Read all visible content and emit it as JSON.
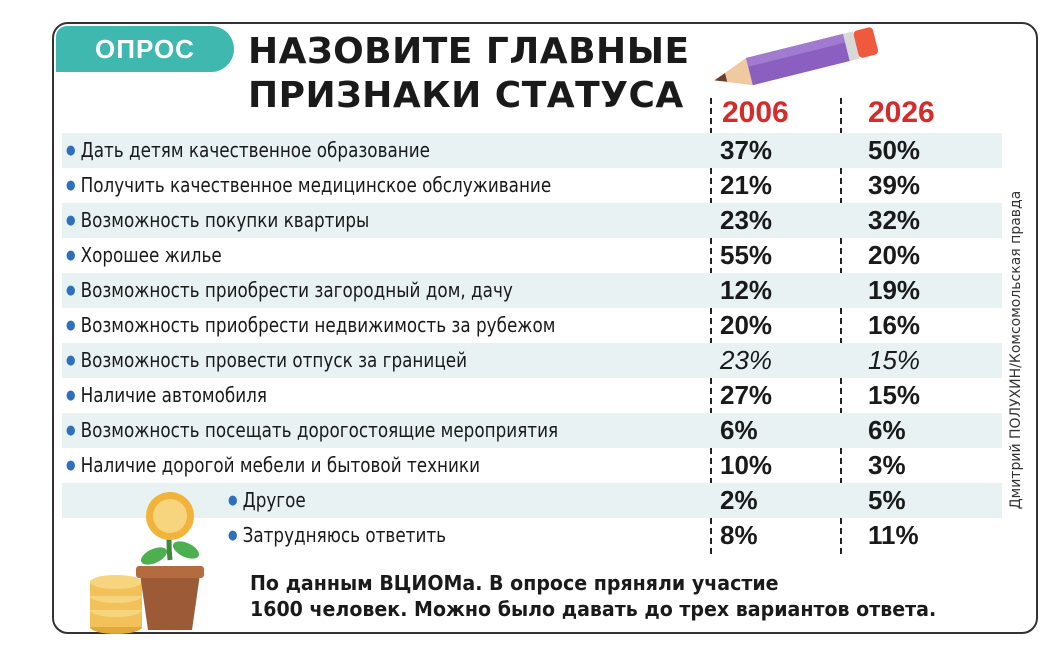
{
  "badge": "ОПРОС",
  "title_lines": [
    "НАЗОВИТЕ ГЛАВНЫЕ",
    "ПРИЗНАКИ СТАТУСА"
  ],
  "credit": "Дмитрий ПОЛУХИН/Комсомольская правда",
  "footnote_lines": [
    "По данным ВЦИОМа. В опросе пряняли участие",
    "1600 человек. Можно было давать до трех вариантов ответа."
  ],
  "colors": {
    "accent": "#3fb8b0",
    "year": "#d62b2b",
    "bullet": "#2f6fc0",
    "row_shade": "#e8f2f2"
  },
  "chart_data": {
    "type": "table",
    "columns": [
      "2006",
      "2026"
    ],
    "rows": [
      {
        "label": "Дать детям качественное образование",
        "values": [
          "37%",
          "50%"
        ],
        "italic": false
      },
      {
        "label": "Получить качественное медицинское обслуживание",
        "values": [
          "21%",
          "39%"
        ],
        "italic": false
      },
      {
        "label": "Возможность покупки квартиры",
        "values": [
          "23%",
          "32%"
        ],
        "italic": false
      },
      {
        "label": "Хорошее жилье",
        "values": [
          "55%",
          "20%"
        ],
        "italic": false
      },
      {
        "label": "Возможность приобрести загородный дом, дачу",
        "values": [
          "12%",
          "19%"
        ],
        "italic": false
      },
      {
        "label": "Возможность приобрести недвижимость за рубежом",
        "values": [
          "20%",
          "16%"
        ],
        "italic": false
      },
      {
        "label": "Возможность провести отпуск за границей",
        "values": [
          "23%",
          "15%"
        ],
        "italic": true
      },
      {
        "label": "Наличие автомобиля",
        "values": [
          "27%",
          "15%"
        ],
        "italic": false
      },
      {
        "label": "Возможность посещать дорогостоящие мероприятия",
        "values": [
          "6%",
          "6%"
        ],
        "italic": false
      },
      {
        "label": "Наличие дорогой мебели и бытовой техники",
        "values": [
          "10%",
          "3%"
        ],
        "italic": false
      },
      {
        "label": "Другое",
        "values": [
          "2%",
          "5%"
        ],
        "italic": false
      },
      {
        "label": "Затрудняюсь ответить",
        "values": [
          "8%",
          "11%"
        ],
        "italic": false
      }
    ]
  }
}
